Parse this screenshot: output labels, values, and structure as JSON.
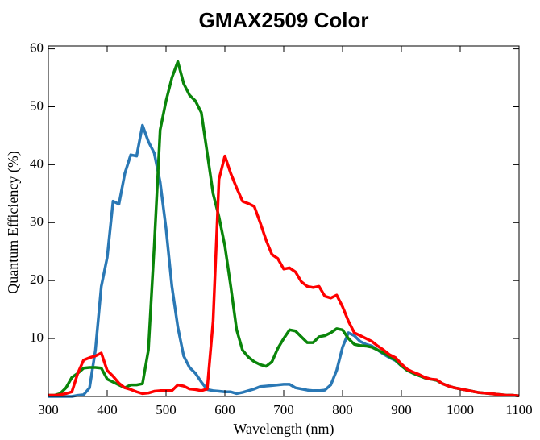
{
  "chart_data": {
    "type": "line",
    "title": "GMAX2509 Color",
    "xlabel": "Wavelength (nm)",
    "ylabel": "Quantum Efficiency (%)",
    "x": [
      300,
      310,
      320,
      330,
      340,
      350,
      360,
      370,
      380,
      390,
      400,
      410,
      420,
      430,
      440,
      450,
      460,
      470,
      480,
      490,
      500,
      510,
      520,
      530,
      540,
      550,
      560,
      570,
      580,
      590,
      600,
      610,
      620,
      630,
      640,
      650,
      660,
      670,
      680,
      690,
      700,
      710,
      720,
      730,
      740,
      750,
      760,
      770,
      780,
      790,
      800,
      810,
      820,
      830,
      840,
      850,
      860,
      870,
      880,
      890,
      900,
      910,
      920,
      930,
      940,
      950,
      960,
      970,
      980,
      990,
      1000,
      1010,
      1020,
      1030,
      1040,
      1050,
      1060,
      1070,
      1080,
      1090,
      1100
    ],
    "series": [
      {
        "name": "Blue",
        "color": "#2a78b5",
        "values": [
          0,
          0,
          0,
          0,
          0,
          0.2,
          0.3,
          1.5,
          8,
          19,
          24,
          33.7,
          33.2,
          38.5,
          41.7,
          41.5,
          46.8,
          44,
          42,
          37,
          29,
          19,
          12,
          7,
          5,
          4,
          2.5,
          1.2,
          1,
          0.9,
          0.8,
          0.8,
          0.5,
          0.7,
          1,
          1.3,
          1.7,
          1.8,
          1.9,
          2,
          2.1,
          2.1,
          1.5,
          1.3,
          1.1,
          1,
          1,
          1.1,
          2,
          4.5,
          8.5,
          11,
          10.5,
          9.5,
          9,
          8.7,
          8,
          7.3,
          6.7,
          6.2,
          5.3,
          4.5,
          4,
          3.6,
          3.3,
          3,
          2.8,
          2.2,
          1.8,
          1.5,
          1.3,
          1.1,
          0.9,
          0.7,
          0.6,
          0.5,
          0.4,
          0.3,
          0.2,
          0.2,
          0.1
        ]
      },
      {
        "name": "Green",
        "color": "#0a850a",
        "values": [
          0.2,
          0.2,
          0.5,
          1.5,
          3.3,
          4,
          4.9,
          5,
          5,
          4.9,
          3,
          2.5,
          2,
          1.5,
          2,
          2,
          2.2,
          8,
          26,
          46,
          51,
          55,
          57.8,
          54,
          52,
          51,
          49,
          42,
          35,
          31,
          26,
          19,
          11.5,
          8,
          6.8,
          6,
          5.5,
          5.2,
          6,
          8.3,
          10,
          11.5,
          11.3,
          10.3,
          9.3,
          9.3,
          10.3,
          10.5,
          11,
          11.7,
          11.5,
          10,
          9,
          8.8,
          8.7,
          8.5,
          8,
          7.5,
          6.9,
          6.3,
          5.3,
          4.5,
          4,
          3.6,
          3.2,
          3,
          2.8,
          2.2,
          1.8,
          1.5,
          1.3,
          1.1,
          0.9,
          0.7,
          0.6,
          0.5,
          0.4,
          0.3,
          0.2,
          0.2,
          0.1
        ]
      },
      {
        "name": "Red",
        "color": "#ff0000",
        "values": [
          0.2,
          0.2,
          0.3,
          0.5,
          0.8,
          4,
          6.3,
          6.7,
          7,
          7.5,
          4.5,
          3.5,
          2.3,
          1.5,
          1.2,
          0.8,
          0.5,
          0.6,
          0.9,
          1,
          1,
          1,
          2,
          1.8,
          1.3,
          1.2,
          1,
          1.3,
          13,
          37.5,
          41.5,
          38.5,
          36,
          33.7,
          33.3,
          32.8,
          30,
          27,
          24.5,
          23.8,
          22,
          22.2,
          21.5,
          19.8,
          19,
          18.8,
          19,
          17.3,
          17,
          17.5,
          15.5,
          13,
          11,
          10.5,
          10,
          9.5,
          8.7,
          8,
          7.2,
          6.7,
          5.6,
          4.7,
          4.2,
          3.8,
          3.3,
          3,
          2.9,
          2.2,
          1.8,
          1.5,
          1.3,
          1.1,
          0.9,
          0.7,
          0.6,
          0.5,
          0.4,
          0.3,
          0.2,
          0.2,
          0.1
        ]
      }
    ],
    "xlim": [
      300,
      1100
    ],
    "ylim": [
      0,
      60.5
    ],
    "xticks": [
      300,
      400,
      500,
      600,
      700,
      800,
      900,
      1000,
      1100
    ],
    "yticks": [
      10,
      20,
      30,
      40,
      50,
      60
    ]
  }
}
